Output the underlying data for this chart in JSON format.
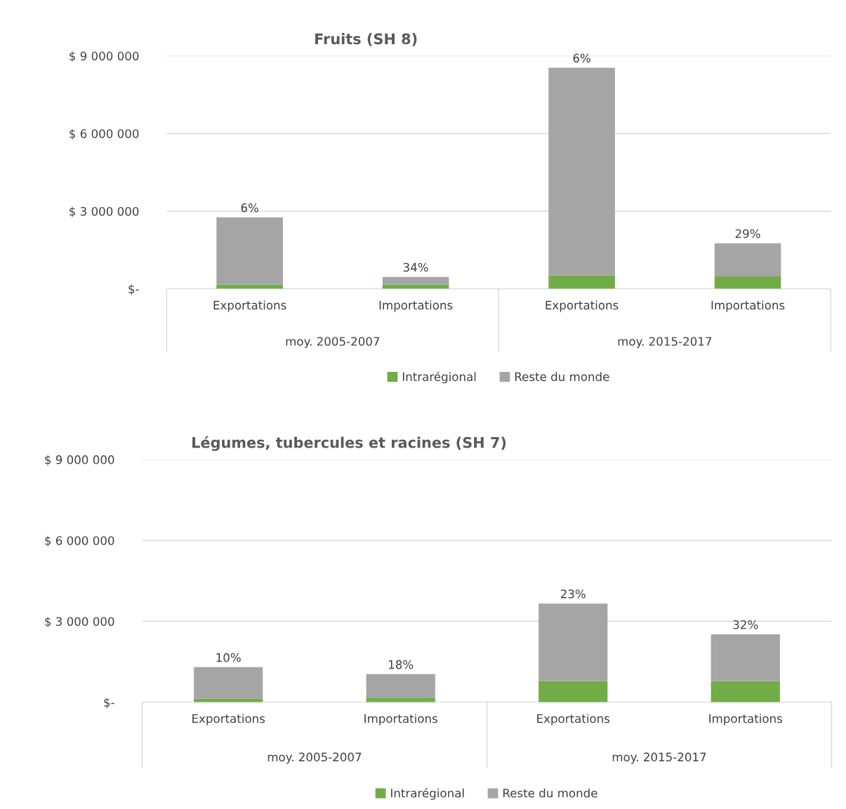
{
  "chart_data": [
    {
      "type": "bar",
      "stacked": true,
      "title": "Fruits (SH 8)",
      "categories": [
        "Exportations",
        "Importations",
        "Exportations",
        "Importations"
      ],
      "series": [
        {
          "name": "Intrarégional",
          "color": "#70ad47",
          "values": [
            160000,
            160000,
            510000,
            480000
          ]
        },
        {
          "name": "Reste du monde",
          "color": "#a5a5a5",
          "values": [
            2600000,
            300000,
            8030000,
            1280000
          ]
        }
      ],
      "annotations": [
        "moy. 2005-2007",
        "moy. 2015-2017",
        "6%",
        "34%",
        "6%",
        "29%"
      ],
      "ylim": [
        0,
        9000000
      ],
      "yticks": [
        {
          "value": 0,
          "label": "$-"
        },
        {
          "value": 3000000,
          "label": "$ 3 000 000"
        },
        {
          "value": 6000000,
          "label": "$ 6 000 000"
        },
        {
          "value": 9000000,
          "label": "$ 9 000 000"
        }
      ],
      "grid": "y",
      "legend": "bottom"
    },
    {
      "type": "bar",
      "stacked": true,
      "title": "Légumes, tubercules et racines (SH 7)",
      "categories": [
        "Exportations",
        "Importations",
        "Exportations",
        "Importations"
      ],
      "series": [
        {
          "name": "Intrarégional",
          "color": "#70ad47",
          "values": [
            130000,
            170000,
            780000,
            780000
          ]
        },
        {
          "name": "Reste du monde",
          "color": "#a5a5a5",
          "values": [
            1170000,
            870000,
            2880000,
            1740000
          ]
        }
      ],
      "annotations": [
        "moy. 2005-2007",
        "moy. 2015-2017",
        "10%",
        "18%",
        "23%",
        "32%"
      ],
      "ylim": [
        0,
        9000000
      ],
      "yticks": [
        {
          "value": 0,
          "label": "$-"
        },
        {
          "value": 3000000,
          "label": "$ 3 000 000"
        },
        {
          "value": 6000000,
          "label": "$ 6 000 000"
        },
        {
          "value": 9000000,
          "label": "$ 9 000 000"
        }
      ],
      "grid": "y",
      "legend": "bottom"
    }
  ]
}
